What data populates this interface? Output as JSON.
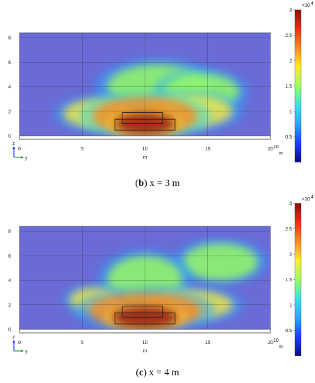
{
  "chart_data": [
    {
      "type": "heatmap",
      "caption_label": "b",
      "caption_text": "x = 3 m",
      "xlabel": "m",
      "x_axis_exponent": "10",
      "x_ticks": [
        "0",
        "5",
        "10",
        "15",
        "20"
      ],
      "y_ticks": [
        "0",
        "2",
        "4",
        "6",
        "8"
      ],
      "xlim": [
        0,
        20
      ],
      "ylim": [
        0,
        8.4
      ],
      "colorbar": {
        "multiplier": "×10",
        "multiplier_exp": "4",
        "ticks": [
          "3",
          "2.5",
          "2",
          "1.5",
          "1",
          "0.5"
        ],
        "range": [
          0,
          30000
        ],
        "colors": [
          "#0b0b87",
          "#1a3dff",
          "#2aa7ff",
          "#35e3e3",
          "#9cff5a",
          "#ffe93a",
          "#ff8a1f",
          "#e53316",
          "#8f0b0b"
        ]
      },
      "background_color": "#6a6bd6",
      "obstacles": [
        {
          "y0": 8.2,
          "y1": 11.4,
          "z0": 1.0,
          "z1": 1.9
        },
        {
          "y0": 7.6,
          "y1": 12.4,
          "z0": 0.45,
          "z1": 1.35
        }
      ],
      "plumes": [
        {
          "y": 10,
          "z": 1.0,
          "ry": 2.4,
          "rz": 0.9,
          "level": 0.95
        },
        {
          "y": 10,
          "z": 1.6,
          "ry": 4.2,
          "rz": 1.6,
          "level": 0.55
        },
        {
          "y": 13.5,
          "z": 2.0,
          "ry": 3.5,
          "rz": 1.3,
          "level": 0.35
        },
        {
          "y": 6.5,
          "z": 1.8,
          "ry": 3.0,
          "rz": 1.2,
          "level": 0.3
        },
        {
          "y": 14.5,
          "z": 3.6,
          "ry": 3.0,
          "rz": 1.5,
          "level": 0.18
        },
        {
          "y": 11,
          "z": 4.0,
          "ry": 4.0,
          "rz": 1.8,
          "level": 0.15
        }
      ]
    },
    {
      "type": "heatmap",
      "caption_label": "c",
      "caption_text": "x = 4 m",
      "xlabel": "m",
      "x_axis_exponent": "10",
      "x_ticks": [
        "0",
        "5",
        "10",
        "15",
        "20"
      ],
      "y_ticks": [
        "0",
        "2",
        "4",
        "6",
        "8"
      ],
      "xlim": [
        0,
        20
      ],
      "ylim": [
        0,
        8.4
      ],
      "colorbar": {
        "multiplier": "×10",
        "multiplier_exp": "4",
        "ticks": [
          "3",
          "2.5",
          "2",
          "1.5",
          "1",
          "0.5"
        ],
        "range": [
          0,
          30000
        ],
        "colors": [
          "#0b0b87",
          "#1a3dff",
          "#2aa7ff",
          "#35e3e3",
          "#9cff5a",
          "#ffe93a",
          "#ff8a1f",
          "#e53316",
          "#8f0b0b"
        ]
      },
      "background_color": "#6a6bd6",
      "obstacles": [
        {
          "y0": 8.2,
          "y1": 11.4,
          "z0": 1.0,
          "z1": 1.9
        },
        {
          "y0": 7.6,
          "y1": 12.4,
          "z0": 0.45,
          "z1": 1.35
        }
      ],
      "plumes": [
        {
          "y": 10,
          "z": 1.0,
          "ry": 2.6,
          "rz": 0.9,
          "level": 0.95
        },
        {
          "y": 10,
          "z": 1.5,
          "ry": 4.5,
          "rz": 1.5,
          "level": 0.5
        },
        {
          "y": 6.0,
          "z": 2.4,
          "ry": 2.0,
          "rz": 1.0,
          "level": 0.35
        },
        {
          "y": 13.5,
          "z": 2.0,
          "ry": 3.5,
          "rz": 1.2,
          "level": 0.35
        },
        {
          "y": 10,
          "z": 4.0,
          "ry": 3.0,
          "rz": 2.0,
          "level": 0.18
        },
        {
          "y": 16,
          "z": 5.5,
          "ry": 3.0,
          "rz": 1.5,
          "level": 0.12
        }
      ]
    }
  ]
}
